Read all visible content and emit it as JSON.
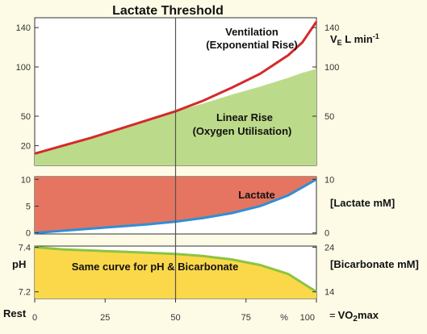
{
  "title": "Lactate Threshold",
  "x_axis": {
    "start_label": "Rest",
    "ticks": [
      "0",
      "25",
      "50",
      "75",
      "100"
    ],
    "percent_label": "%",
    "end_label_prefix": "=",
    "end_label_main": "VO",
    "end_label_sub": "2",
    "end_label_tail": "max"
  },
  "panels": {
    "ventilation": {
      "left_ticks": [
        "140",
        "100",
        "50",
        "20"
      ],
      "right_ticks": [
        "140",
        "100",
        "50"
      ],
      "unit_v": "V",
      "unit_sub": "E",
      "unit_l": " L min",
      "unit_sup": "-1",
      "curve_label_line1": "Ventilation",
      "curve_label_line2": "(Exponential Rise)",
      "fill_label_line1": "Linear Rise",
      "fill_label_line2": "(Oxygen Utilisation)"
    },
    "lactate": {
      "left_ticks": [
        "10",
        "5",
        "0"
      ],
      "right_ticks": [
        "10",
        "0"
      ],
      "right_label": "[Lactate mM]",
      "area_label": "Lactate"
    },
    "ph": {
      "left_ticks": [
        "7.4",
        "7.2"
      ],
      "right_ticks": [
        "24",
        "14"
      ],
      "left_label": "pH",
      "right_label": "[Bicarbonate mM]",
      "area_label": "Same curve for pH & Bicarbonate"
    }
  },
  "colors": {
    "background": "#fdfbe6",
    "ventilation_line": "#d42a2a",
    "linear_fill": "#bcdb8a",
    "lactate_fill": "#e57560",
    "lactate_line": "#2f8fd6",
    "ph_fill": "#fbd84a",
    "ph_line": "#8bc53f",
    "threshold_line": "#555555"
  },
  "chart_data": [
    {
      "type": "area",
      "panel": "ventilation",
      "x": [
        0,
        10,
        20,
        30,
        40,
        50,
        60,
        70,
        80,
        90,
        95,
        100
      ],
      "series": [
        {
          "name": "Ventilation (Exponential Rise)",
          "values": [
            12,
            20,
            28,
            37,
            46,
            55,
            66,
            79,
            93,
            112,
            125,
            146
          ]
        },
        {
          "name": "Linear Rise (Oxygen Utilisation)",
          "values": [
            12,
            20,
            29,
            37,
            46,
            55,
            63,
            72,
            80,
            89,
            94,
            98
          ]
        }
      ],
      "threshold_x": 50,
      "xlim": [
        0,
        100
      ]
    },
    {
      "type": "area",
      "panel": "lactate",
      "x": [
        0,
        10,
        20,
        30,
        40,
        50,
        60,
        70,
        80,
        90,
        100
      ],
      "series": [
        {
          "name": "Lactate",
          "values": [
            0,
            0.4,
            0.8,
            1.2,
            1.6,
            2.1,
            2.8,
            3.7,
            5.0,
            7.0,
            10.0
          ]
        }
      ],
      "ylim": [
        0,
        10
      ],
      "xlim": [
        0,
        100
      ]
    },
    {
      "type": "area",
      "panel": "ph",
      "x": [
        0,
        10,
        20,
        30,
        40,
        50,
        60,
        70,
        80,
        90,
        100
      ],
      "series": [
        {
          "name": "Same curve for pH & Bicarbonate",
          "values": [
            7.4,
            7.39,
            7.385,
            7.38,
            7.375,
            7.37,
            7.36,
            7.345,
            7.32,
            7.28,
            7.2
          ]
        }
      ],
      "ylim": [
        7.2,
        7.4
      ],
      "xlim": [
        0,
        100
      ]
    }
  ]
}
